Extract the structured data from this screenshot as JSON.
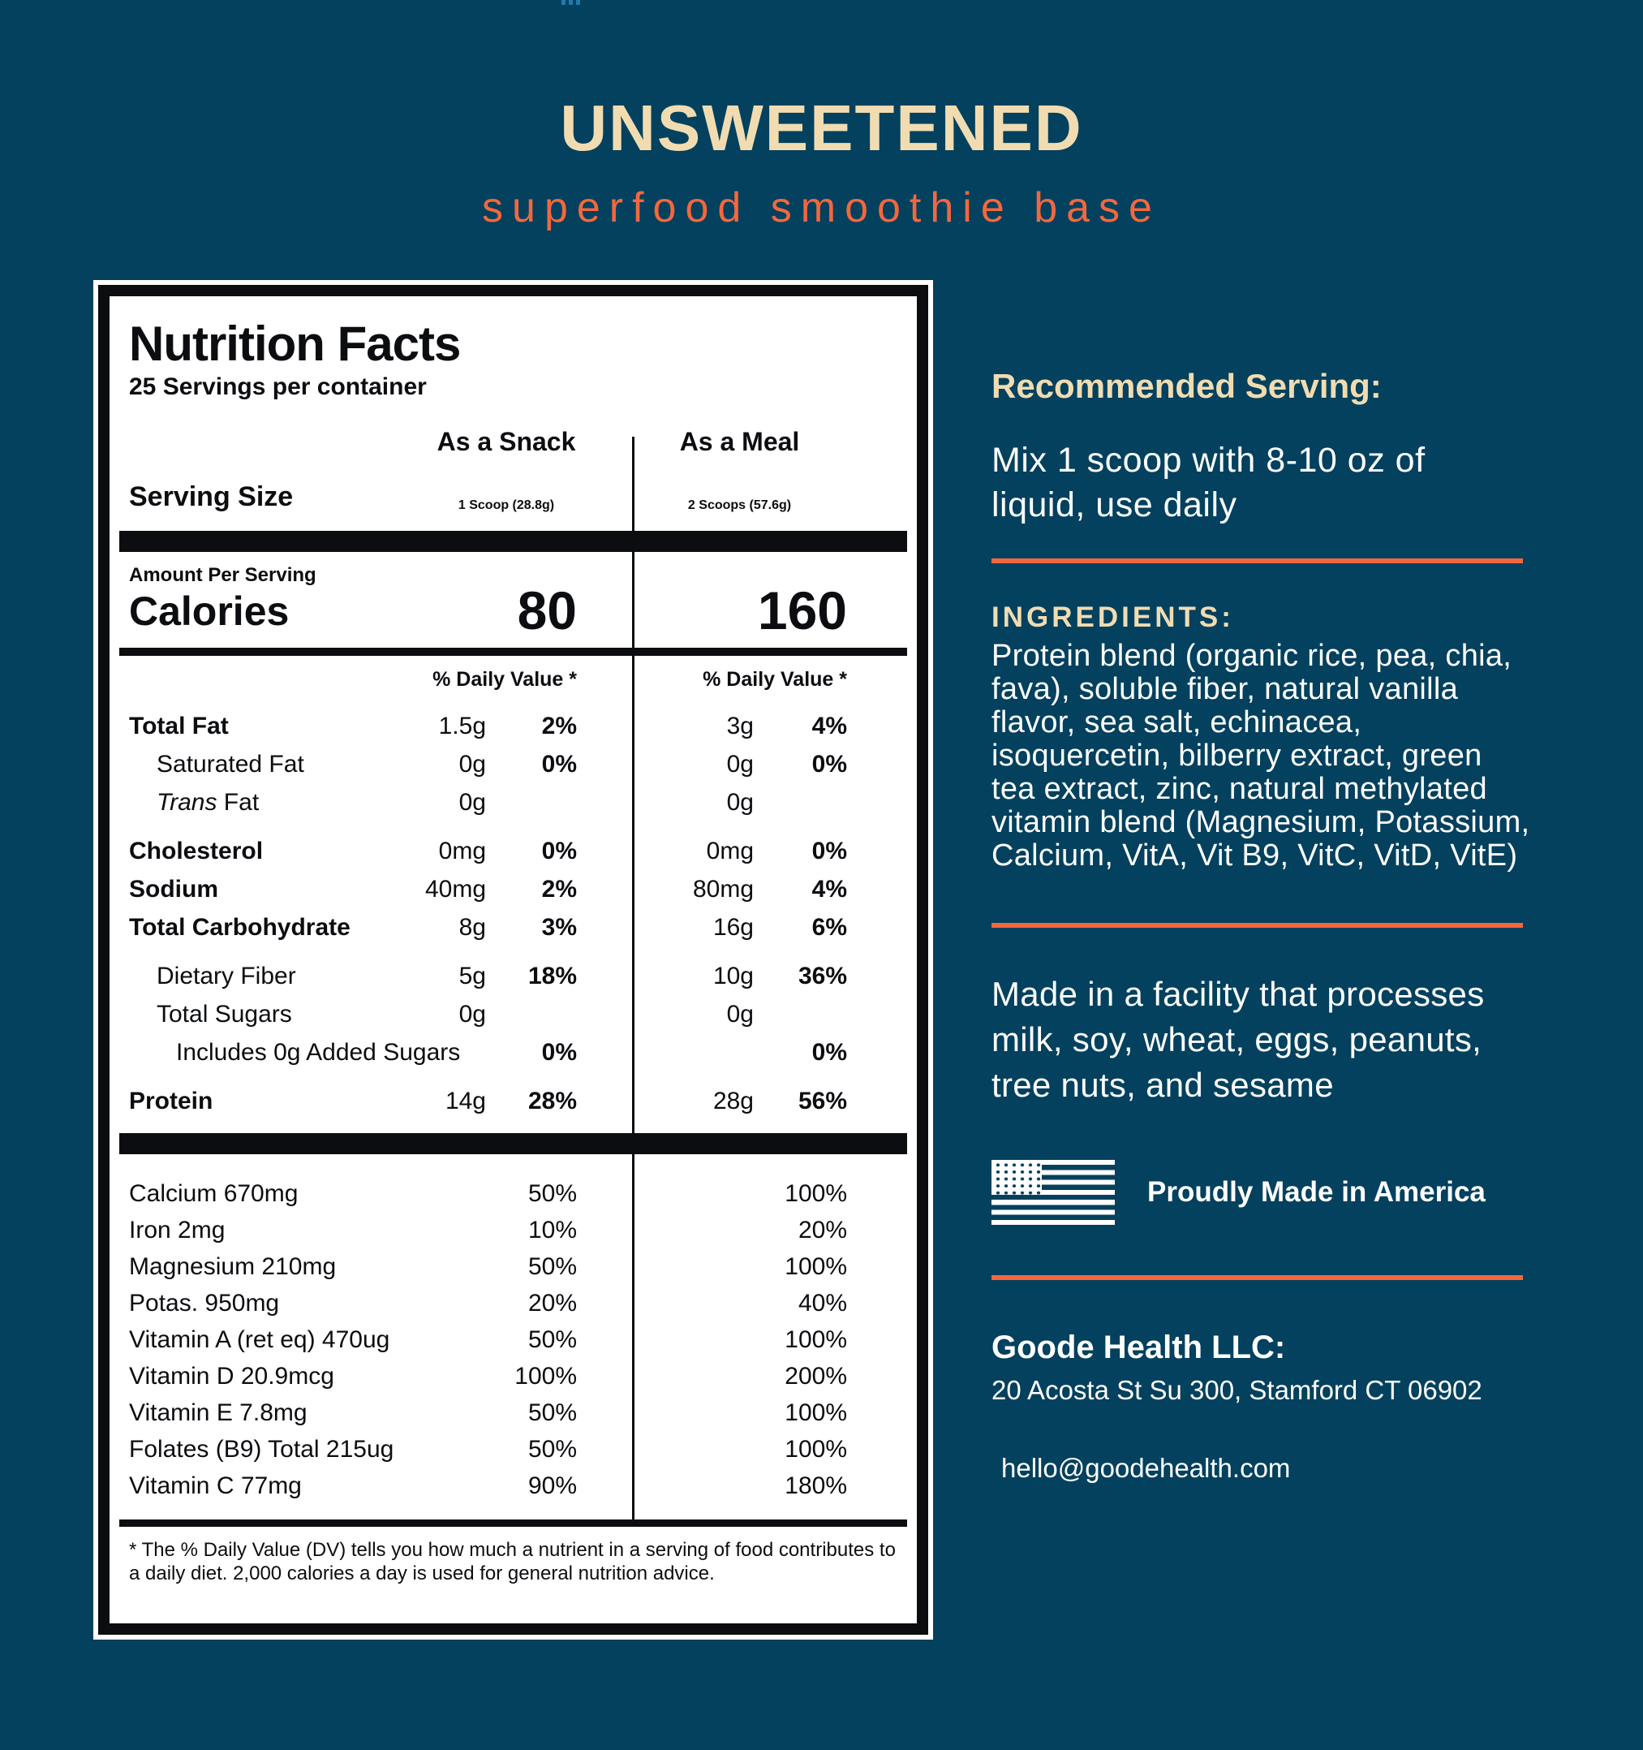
{
  "theme": {
    "background_color": "#03415E",
    "cream_color": "#F1DCB1",
    "orange_accent_color": "#F4673D",
    "label_ink_color": "#0B0D10",
    "trademark_mark_color": "#2279AB"
  },
  "header": {
    "title": "UNSWEETENED",
    "subtitle": "superfood smoothie base"
  },
  "nutrition_label": {
    "title": "Nutrition Facts",
    "servings_per_container": "25 Servings per container",
    "serving_size_label": "Serving Size",
    "columns": [
      {
        "header": "As a Snack",
        "serving": "1 Scoop (28.8g)",
        "calories": "80",
        "daily_value_header": "% Daily Value *"
      },
      {
        "header": "As a Meal",
        "serving": "2 Scoops (57.6g)",
        "calories": "160",
        "daily_value_header": "% Daily Value *"
      }
    ],
    "amount_per_serving_label": "Amount Per Serving",
    "calories_label": "Calories",
    "nutrients": [
      {
        "name": "Total Fat",
        "bold": true,
        "indent": 0,
        "snack_amount": "1.5g",
        "snack_dv": "2%",
        "meal_amount": "3g",
        "meal_dv": "4%"
      },
      {
        "name": "Saturated Fat",
        "bold": false,
        "indent": 1,
        "snack_amount": "0g",
        "snack_dv": "0%",
        "meal_amount": "0g",
        "meal_dv": "0%"
      },
      {
        "name": " Fat",
        "italic_prefix": "Trans",
        "bold": false,
        "indent": 1,
        "snack_amount": "0g",
        "snack_dv": "",
        "meal_amount": "0g",
        "meal_dv": ""
      },
      {
        "name": "Cholesterol",
        "bold": true,
        "indent": 0,
        "gap_before": true,
        "snack_amount": "0mg",
        "snack_dv": "0%",
        "meal_amount": "0mg",
        "meal_dv": "0%"
      },
      {
        "name": "Sodium",
        "bold": true,
        "indent": 0,
        "snack_amount": "40mg",
        "snack_dv": "2%",
        "meal_amount": "80mg",
        "meal_dv": "4%"
      },
      {
        "name": "Total Carbohydrate",
        "bold": true,
        "indent": 0,
        "snack_amount": "8g",
        "snack_dv": "3%",
        "meal_amount": "16g",
        "meal_dv": "6%"
      },
      {
        "name": "Dietary Fiber",
        "bold": false,
        "indent": 1,
        "gap_before": true,
        "snack_amount": "5g",
        "snack_dv": "18%",
        "meal_amount": "10g",
        "meal_dv": "36%"
      },
      {
        "name": "Total Sugars",
        "bold": false,
        "indent": 1,
        "snack_amount": "0g",
        "snack_dv": "",
        "meal_amount": "0g",
        "meal_dv": ""
      },
      {
        "name": "Includes 0g Added Sugars",
        "bold": false,
        "indent": 2,
        "wide": true,
        "snack_amount": "",
        "snack_dv": "0%",
        "meal_amount": "",
        "meal_dv": "0%"
      },
      {
        "name": "Protein",
        "bold": true,
        "indent": 0,
        "gap_before": true,
        "snack_amount": "14g",
        "snack_dv": "28%",
        "meal_amount": "28g",
        "meal_dv": "56%"
      }
    ],
    "micronutrients": [
      {
        "name": "Calcium 670mg",
        "snack_dv": "50%",
        "meal_dv": "100%"
      },
      {
        "name": "Iron 2mg",
        "snack_dv": "10%",
        "meal_dv": "20%"
      },
      {
        "name": "Magnesium 210mg",
        "snack_dv": "50%",
        "meal_dv": "100%"
      },
      {
        "name": "Potas. 950mg",
        "snack_dv": "20%",
        "meal_dv": "40%"
      },
      {
        "name": "Vitamin A (ret eq) 470ug",
        "snack_dv": "50%",
        "meal_dv": "100%"
      },
      {
        "name": "Vitamin D 20.9mcg",
        "snack_dv": "100%",
        "meal_dv": "200%"
      },
      {
        "name": "Vitamin E 7.8mg",
        "snack_dv": "50%",
        "meal_dv": "100%"
      },
      {
        "name": "Folates (B9) Total 215ug",
        "snack_dv": "50%",
        "meal_dv": "100%"
      },
      {
        "name": "Vitamin C 77mg",
        "snack_dv": "90%",
        "meal_dv": "180%"
      }
    ],
    "footnote": "* The % Daily Value (DV) tells you how much a nutrient in a serving of food contributes to a daily diet. 2,000 calories a day is used for general nutrition advice."
  },
  "sidebar": {
    "recommended_serving": {
      "heading": "Recommended Serving:",
      "body": "Mix 1 scoop with 8-10 oz of liquid, use daily"
    },
    "ingredients": {
      "heading": "INGREDIENTS:",
      "body": "Protein blend (organic rice, pea, chia, fava), soluble fiber, natural vanilla flavor, sea salt, echinacea, isoquercetin, bilberry extract, green tea extract, zinc, natural methylated vitamin blend (Magnesium, Potassium, Calcium, VitA, Vit B9, VitC, VitD, VitE)"
    },
    "allergen_notice": "Made in a facility that processes milk, soy, wheat, eggs, peanuts, tree nuts, and sesame",
    "made_in_america": "Proudly Made in America",
    "company": {
      "name": "Goode Health LLC:",
      "address": "20 Acosta St Su 300, Stamford CT 06902",
      "email": "hello@goodehealth.com"
    }
  }
}
